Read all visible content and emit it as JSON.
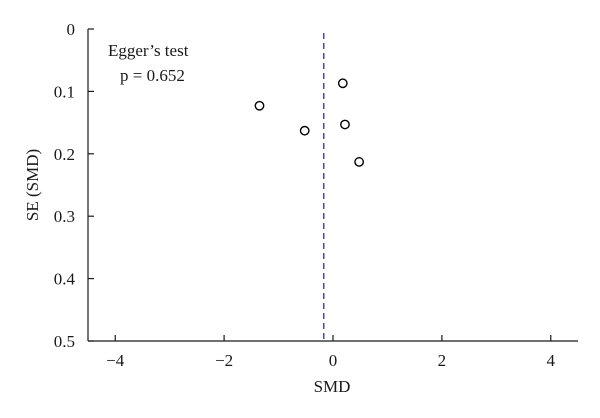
{
  "chart_data": {
    "type": "scatter",
    "title": "",
    "xlabel": "SMD",
    "ylabel": "SE (SMD)",
    "xlim": [
      -4.5,
      4.5
    ],
    "ylim": [
      0,
      0.5
    ],
    "y_inverted": true,
    "xticks": [
      -4,
      -2,
      0,
      2,
      4
    ],
    "xtick_labels": [
      "−4",
      "−2",
      "0",
      "2",
      "4"
    ],
    "yticks": [
      0,
      0.1,
      0.2,
      0.3,
      0.4,
      0.5
    ],
    "ytick_labels": [
      "0",
      "0.1",
      "0.2",
      "0.3",
      "0.4",
      "0.5"
    ],
    "grid": false,
    "reference_line": {
      "x": -0.17,
      "color": "#3b3ea8",
      "style": "dashed"
    },
    "annotation": {
      "line1": "Egger’s test",
      "line2": "p = 0.652"
    },
    "points": [
      {
        "x": -1.35,
        "y": 0.123
      },
      {
        "x": -0.52,
        "y": 0.163
      },
      {
        "x": 0.18,
        "y": 0.087
      },
      {
        "x": 0.22,
        "y": 0.153
      },
      {
        "x": 0.48,
        "y": 0.213
      }
    ]
  }
}
